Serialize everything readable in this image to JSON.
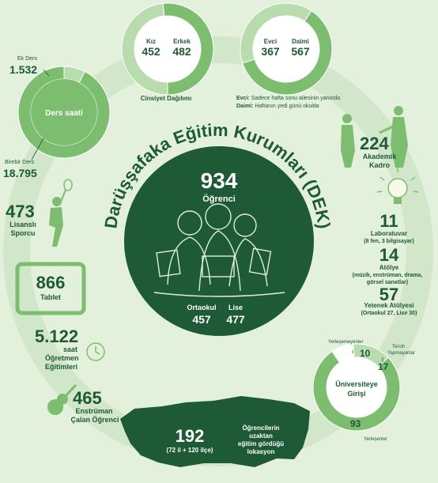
{
  "colors": {
    "background": "#e3f0dc",
    "ring": "#d2e6c9",
    "dark": "#1d5a35",
    "mid": "#7dbd70",
    "light": "#b9dcae",
    "white": "#ffffff"
  },
  "title": "Darüşşafaka Eğitim Kurumları (DEK)",
  "center": {
    "total": "934",
    "total_label": "Öğrenci",
    "ortaokul_label": "Ortaokul",
    "ortaokul_value": "457",
    "lise_label": "Lise",
    "lise_value": "477"
  },
  "donuts": {
    "ders_saati": {
      "center_label": "Ders saati",
      "ek_label": "Ek Ders",
      "ek_value": "1.532",
      "birebir_label": "Birebir Ders",
      "birebir_value": "18.795"
    },
    "cinsiyet": {
      "caption": "Cinsiyet Dağılımı",
      "kiz_label": "Kız",
      "kiz_value": "452",
      "erkek_label": "Erkek",
      "erkek_value": "482"
    },
    "barinma": {
      "evci_label": "Evci",
      "evci_value": "367",
      "daimi_label": "Daimi",
      "daimi_value": "567",
      "note_evci_key": "Evci:",
      "note_evci_text": "Sadece hafta sonu ailesinin yanında",
      "note_daimi_key": "Daimi:",
      "note_daimi_text": "Haftanın yedi günü okulda"
    },
    "universite": {
      "center_label_1": "Üniversiteye",
      "center_label_2": "Girişi",
      "yerlesemeyen_value": "10",
      "yerlesemeyen_label": "Yerleşemeyenler",
      "tercih_value": "17",
      "tercih_label_1": "Tercih",
      "tercih_label_2": "Yapmayanlar",
      "yerlesen_value": "93",
      "yerlesen_label": "Yerleşenler"
    }
  },
  "stats": {
    "akademik": {
      "value": "224",
      "label_1": "Akademik",
      "label_2": "Kadro"
    },
    "laboratuvar": {
      "value": "11",
      "label": "Laboratuvar",
      "detail": "(8 fen, 3 bilgisayar)"
    },
    "atolye": {
      "value": "14",
      "label": "Atölye",
      "detail_1": "(müzik, enstrüman, drama,",
      "detail_2": "görsel sanatlar)"
    },
    "yetenek": {
      "value": "57",
      "label": "Yetenek Atölyesi",
      "detail": "(Ortaokul 27, Lise 30)"
    },
    "sporcu": {
      "value": "473",
      "label_1": "Lisanslı",
      "label_2": "Sporcu"
    },
    "tablet": {
      "value": "866",
      "label": "Tablet"
    },
    "ogretmen": {
      "value": "5.122",
      "label_1": "saat",
      "label_2": "Öğretmen",
      "label_3": "Eğitimleri"
    },
    "enstruman": {
      "value": "465",
      "label_1": "Enstrüman",
      "label_2": "Çalan Öğrenci"
    },
    "lokasyon": {
      "value": "192",
      "detail": "(72 il + 120 ilçe)",
      "label_1": "Öğrencilerin",
      "label_2": "uzaktan",
      "label_3": "eğitim gördüğü",
      "label_4": "lokasyon"
    }
  },
  "chart_data": [
    {
      "type": "pie",
      "title": "Ders saati",
      "categories": [
        "Ek Ders",
        "Birebir Ders"
      ],
      "values": [
        1532,
        18795
      ]
    },
    {
      "type": "pie",
      "title": "Cinsiyet Dağılımı",
      "categories": [
        "Kız",
        "Erkek"
      ],
      "values": [
        452,
        482
      ]
    },
    {
      "type": "pie",
      "title": "",
      "categories": [
        "Evci",
        "Daimi"
      ],
      "values": [
        367,
        567
      ]
    },
    {
      "type": "pie",
      "title": "Üniversiteye Girişi",
      "categories": [
        "Yerleşemeyenler",
        "Tercih Yapmayanlar",
        "Yerleşenler"
      ],
      "values": [
        10,
        17,
        93
      ]
    },
    {
      "type": "pie",
      "title": "Öğrenci",
      "categories": [
        "Ortaokul",
        "Lise"
      ],
      "values": [
        457,
        477
      ]
    }
  ]
}
